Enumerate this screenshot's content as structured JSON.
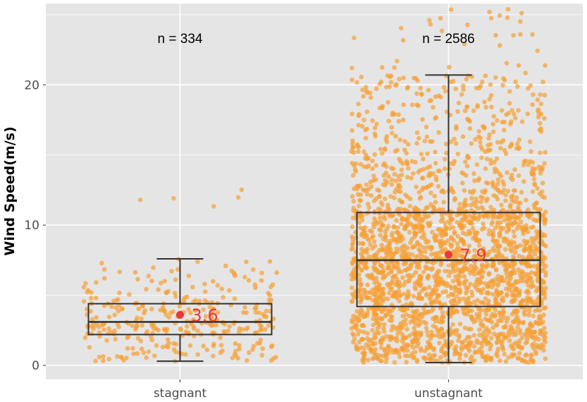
{
  "chart_data": {
    "type": "box",
    "title": "",
    "xlabel": "",
    "ylabel": "Wind Speed(m/s)",
    "ylim": [
      -1,
      25.8
    ],
    "yticks": [
      0,
      10,
      20
    ],
    "grid": true,
    "categories": [
      "stagnant",
      "unstagnant"
    ],
    "groups": [
      {
        "name": "stagnant",
        "n_label": "n =  334",
        "n": 334,
        "whisker_low": 0.3,
        "q1": 2.2,
        "median": 3.1,
        "q3": 4.4,
        "whisker_high": 7.6,
        "mean": 3.6,
        "mean_label": "3.6",
        "max_point": 13.1
      },
      {
        "name": "unstagnant",
        "n_label": "n =  2586",
        "n": 2586,
        "whisker_low": 0.2,
        "q1": 4.2,
        "median": 7.5,
        "q3": 10.9,
        "whisker_high": 20.7,
        "mean": 7.9,
        "mean_label": "7.9",
        "max_point": 25.7
      }
    ],
    "colors": {
      "panel": "#e5e5e5",
      "grid": "#ffffff",
      "points": "#f7a035",
      "box": "#333333",
      "mean": "#e8383d"
    }
  }
}
